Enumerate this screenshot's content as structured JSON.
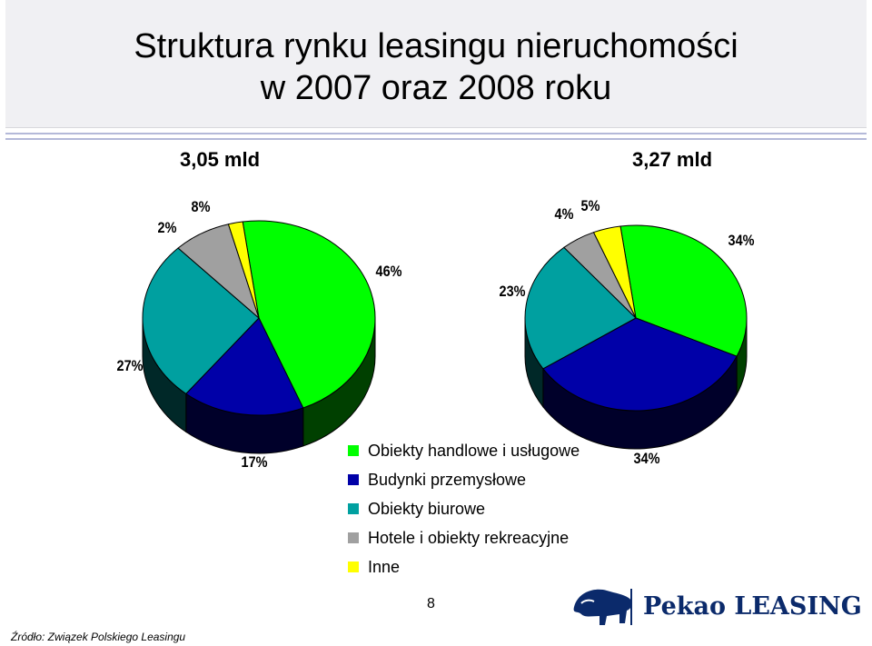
{
  "title": {
    "line1": "Struktura rynku leasingu nieruchomości",
    "line2": "w 2007 oraz 2008 roku"
  },
  "colors": {
    "handlowe": "#00ff00",
    "przemyslowe": "#0000a8",
    "biurowe": "#00a0a0",
    "hotele": "#a0a0a0",
    "inne": "#ffff00",
    "brand": "#0b2a6b"
  },
  "legend": [
    {
      "label": "Obiekty handlowe i usługowe",
      "color": "#00ff00"
    },
    {
      "label": "Budynki przemysłowe",
      "color": "#0000a8"
    },
    {
      "label": "Obiekty biurowe",
      "color": "#00a0a0"
    },
    {
      "label": "Hotele i obiekty rekreacyjne",
      "color": "#a0a0a0"
    },
    {
      "label": "Inne",
      "color": "#ffff00"
    }
  ],
  "chart_data": [
    {
      "type": "pie",
      "year": "2007",
      "total": "3,05 mld",
      "categories": [
        "Obiekty handlowe i usługowe",
        "Budynki przemysłowe",
        "Obiekty biurowe",
        "Hotele i obiekty rekreacyjne",
        "Inne"
      ],
      "values": [
        46,
        17,
        27,
        8,
        2
      ],
      "labels": [
        "46%",
        "17%",
        "27%",
        "8%",
        "2%"
      ],
      "three_d": true
    },
    {
      "type": "pie",
      "year": "2008",
      "total": "3,27 mld",
      "categories": [
        "Obiekty handlowe i usługowe",
        "Budynki przemysłowe",
        "Obiekty biurowe",
        "Hotele i obiekty rekreacyjne",
        "Inne"
      ],
      "values": [
        34,
        34,
        23,
        5,
        4
      ],
      "labels": [
        "34%",
        "34%",
        "23%",
        "5%",
        "4%"
      ],
      "three_d": true
    }
  ],
  "footer": {
    "page_number": "8",
    "source": "Źródło: Związek Polskiego Leasingu",
    "logo_text": "Pekao LEASING"
  }
}
